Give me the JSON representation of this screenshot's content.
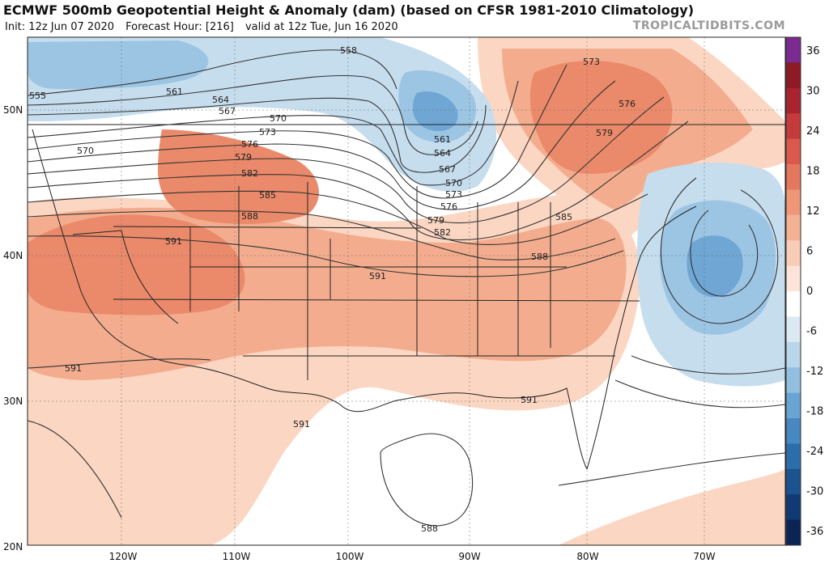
{
  "header": {
    "title": "ECMWF 500mb Geopotential Height & Anomaly (dam) (based on CFSR 1981-2010 Climatology)",
    "init": "Init: 12z Jun 07 2020",
    "forecast_hour": "Forecast Hour: [216]",
    "valid": "valid at 12z Tue, Jun 16 2020",
    "brand": "TROPICALTIDBITS.COM"
  },
  "axes": {
    "lat_labels": [
      "50N",
      "40N",
      "30N",
      "20N"
    ],
    "lon_labels": [
      "120W",
      "110W",
      "100W",
      "90W",
      "80W",
      "70W"
    ]
  },
  "colorbar": {
    "ticks": [
      "36",
      "30",
      "24",
      "18",
      "12",
      "6",
      "0",
      "-6",
      "-12",
      "-18",
      "-24",
      "-30",
      "-36"
    ],
    "colors": [
      "#7b2a8f",
      "#8e1a24",
      "#a9242e",
      "#c53a3a",
      "#d9594c",
      "#e4785f",
      "#ee9676",
      "#f4b295",
      "#f8ccb6",
      "#fde4d8",
      "#ffffff",
      "#dbe9f3",
      "#b9d6ea",
      "#92bfe0",
      "#6aa4d3",
      "#4889c2",
      "#2c6eac",
      "#1b5290",
      "#103a73",
      "#0c2454"
    ]
  },
  "contour_labels": [
    {
      "id": "558",
      "text": "558"
    },
    {
      "id": "555",
      "text": "555"
    },
    {
      "id": "561a",
      "text": "561"
    },
    {
      "id": "564a",
      "text": "564"
    },
    {
      "id": "567a",
      "text": "567"
    },
    {
      "id": "570a",
      "text": "570"
    },
    {
      "id": "570b",
      "text": "570"
    },
    {
      "id": "573a",
      "text": "573"
    },
    {
      "id": "576a",
      "text": "576"
    },
    {
      "id": "579a",
      "text": "579"
    },
    {
      "id": "582a",
      "text": "582"
    },
    {
      "id": "585a",
      "text": "585"
    },
    {
      "id": "588a",
      "text": "588"
    },
    {
      "id": "591a",
      "text": "591"
    },
    {
      "id": "591b",
      "text": "591"
    },
    {
      "id": "591c",
      "text": "591"
    },
    {
      "id": "591d",
      "text": "591"
    },
    {
      "id": "591e",
      "text": "591"
    },
    {
      "id": "561b",
      "text": "561"
    },
    {
      "id": "564b",
      "text": "564"
    },
    {
      "id": "567b",
      "text": "567"
    },
    {
      "id": "570c",
      "text": "570"
    },
    {
      "id": "573b",
      "text": "573"
    },
    {
      "id": "576b",
      "text": "576"
    },
    {
      "id": "579b",
      "text": "579"
    },
    {
      "id": "582b",
      "text": "582"
    },
    {
      "id": "588b",
      "text": "588"
    },
    {
      "id": "585b",
      "text": "585"
    },
    {
      "id": "573c",
      "text": "573"
    },
    {
      "id": "576c",
      "text": "576"
    },
    {
      "id": "579c",
      "text": "579"
    },
    {
      "id": "588c",
      "text": "588"
    }
  ]
}
